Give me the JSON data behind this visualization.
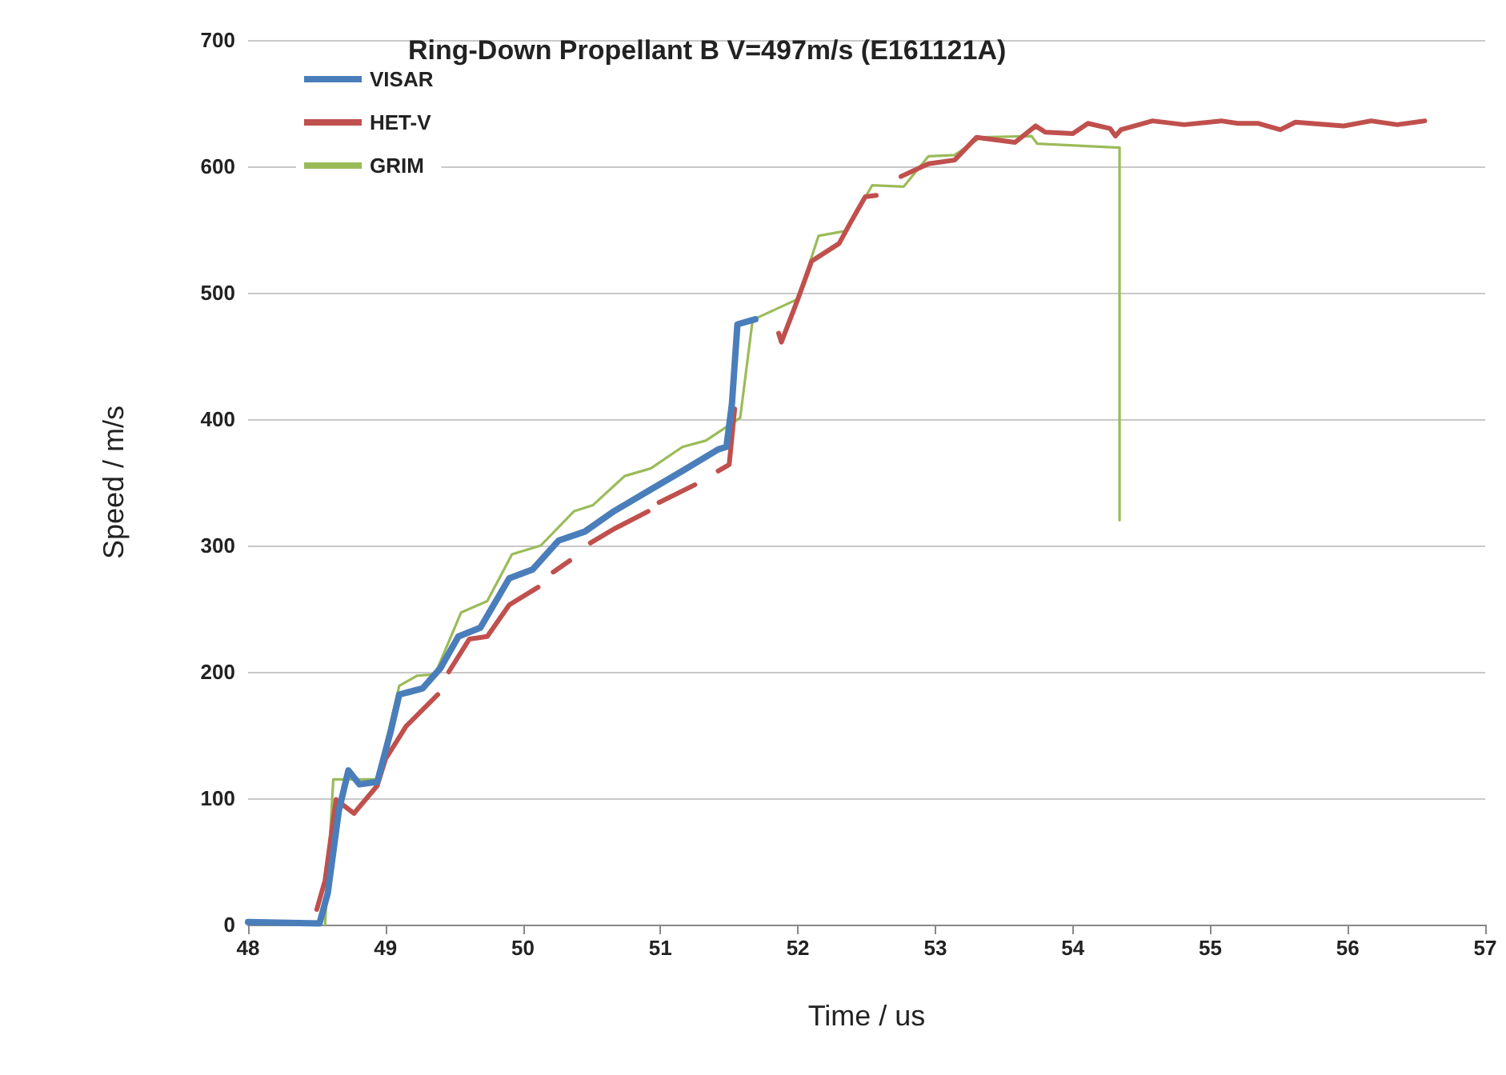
{
  "chart_data": {
    "type": "line",
    "title": "Ring-Down Propellant B V=497m/s (E161121A)",
    "xlabel": "Time / us",
    "ylabel": "Speed / m/s",
    "xlim": [
      48,
      57
    ],
    "xticks": [
      48,
      49,
      50,
      51,
      52,
      53,
      54,
      55,
      56,
      57
    ],
    "ylim": [
      0,
      700
    ],
    "yticks": [
      0,
      100,
      200,
      300,
      400,
      500,
      600,
      700
    ],
    "grid": "y",
    "legend": "top left",
    "marker": "none",
    "line_style": "solid",
    "series": [
      {
        "name": "VISAR",
        "color": "#4a7ebb",
        "x": [
          48,
          48.52,
          48.58,
          48.66,
          48.73,
          48.81,
          48.94,
          49.04,
          49.1,
          49.27,
          49.4,
          49.53,
          49.69,
          49.9,
          50.07,
          50.26,
          50.45,
          50.66,
          50.91,
          51.16,
          51.42,
          51.48,
          51.52,
          51.56,
          51.69
        ],
        "values": [
          2,
          1,
          25,
          90,
          122,
          111,
          113,
          154,
          182,
          187,
          203,
          228,
          235,
          274,
          281,
          304,
          311,
          327,
          343,
          359,
          376,
          378,
          412,
          475,
          479
        ]
      },
      {
        "name": "HET-V",
        "color": "#c0504d",
        "x": [
          48.5,
          48.56,
          48.64,
          48.77,
          48.94,
          49.0,
          49.15,
          49.38,
          49.42,
          49.46,
          49.61,
          49.74,
          49.9,
          50.11,
          50.16,
          50.22,
          50.34,
          50.4,
          50.49,
          50.66,
          50.91,
          50.95,
          50.99,
          51.25,
          51.33,
          51.42,
          51.5,
          51.54,
          51.7,
          51.86,
          51.88,
          52.0,
          52.1,
          52.3,
          52.38,
          52.49,
          52.57,
          52.66,
          52.75,
          52.95,
          53.14,
          53.3,
          53.58,
          53.73,
          53.8,
          54.0,
          54.11,
          54.27,
          54.31,
          54.35,
          54.58,
          54.81,
          55.08,
          55.2,
          55.35,
          55.51,
          55.62,
          55.97,
          56.17,
          56.36,
          56.56
        ],
        "values": [
          12,
          35,
          99,
          88,
          110,
          131,
          157,
          182,
          null,
          200,
          226,
          228,
          253,
          267,
          null,
          279,
          288,
          null,
          302,
          313,
          327,
          null,
          334,
          348,
          null,
          359,
          364,
          408,
          null,
          468,
          461,
          495,
          525,
          539,
          555,
          576,
          577,
          null,
          592,
          602,
          605,
          623,
          619,
          632,
          627,
          626,
          634,
          630,
          624,
          629,
          636,
          633,
          636,
          634,
          634,
          629,
          635,
          632,
          636,
          633,
          636
        ]
      },
      {
        "name": "GRIM",
        "color": "#9bbb59",
        "x": [
          48.56,
          48.62,
          48.94,
          49.1,
          49.23,
          49.36,
          49.55,
          49.74,
          49.92,
          50.13,
          50.37,
          50.51,
          50.74,
          50.93,
          51.16,
          51.33,
          51.58,
          51.67,
          51.7,
          52.0,
          52.15,
          52.35,
          52.54,
          52.77,
          52.95,
          53.14,
          53.33,
          53.7,
          53.74,
          54.31,
          54.34,
          54.34
        ],
        "values": [
          0,
          115,
          115,
          189,
          197,
          198,
          247,
          256,
          293,
          300,
          327,
          332,
          355,
          361,
          378,
          383,
          401,
          478,
          480,
          495,
          545,
          549,
          585,
          584,
          608,
          609,
          623,
          624,
          618,
          615,
          615,
          320
        ]
      }
    ]
  }
}
